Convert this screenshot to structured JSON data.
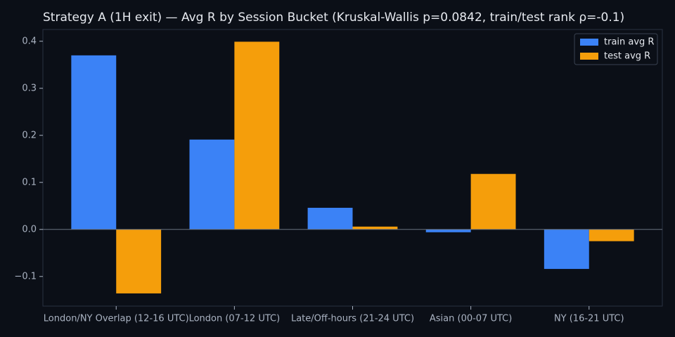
{
  "chart_data": {
    "type": "bar",
    "title": "Strategy A (1H exit) — Avg R by Session Bucket (Kruskal-Wallis p=0.0842, train/test rank ρ=-0.1)",
    "categories": [
      "London/NY Overlap (12-16 UTC)",
      "London (07-12 UTC)",
      "Late/Off-hours (21-24 UTC)",
      "Asian (00-07 UTC)",
      "NY (16-21 UTC)"
    ],
    "series": [
      {
        "name": "train avg R",
        "color": "#3b82f6",
        "values": [
          0.37,
          0.191,
          0.046,
          -0.006,
          -0.084
        ]
      },
      {
        "name": "test avg R",
        "color": "#f59e0b",
        "values": [
          -0.136,
          0.399,
          0.006,
          0.118,
          -0.025
        ]
      }
    ],
    "ylim": [
      -0.163,
      0.425
    ],
    "yticks": [
      {
        "value": -0.1,
        "label": "−0.1"
      },
      {
        "value": 0,
        "label": "0.0"
      },
      0.1,
      0.2,
      0.3,
      0.4
    ],
    "legend": "upper right",
    "zero_line": true
  }
}
